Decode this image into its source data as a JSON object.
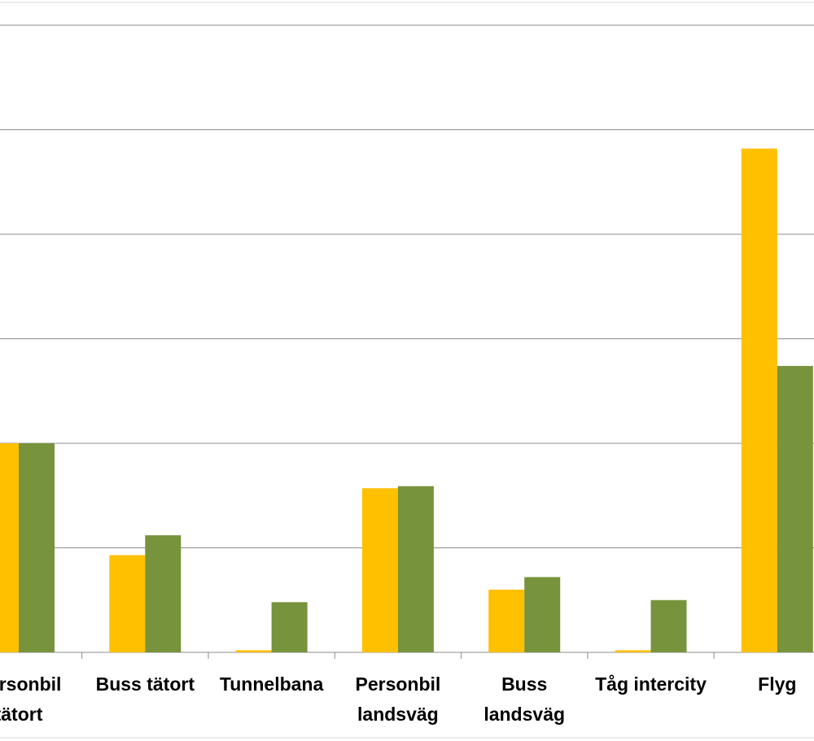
{
  "chart_data": {
    "type": "bar",
    "categories": [
      "Personbil tätort",
      "Buss tätort",
      "Tunnelbana",
      "Personbil landsväg",
      "Buss landsväg",
      "Tåg intercity",
      "Flyg"
    ],
    "series": [
      {
        "color": "#ffc000",
        "values": [
          2.0,
          0.93,
          0.02,
          1.57,
          0.6,
          0.02,
          4.82
        ]
      },
      {
        "color": "#77933c",
        "values": [
          2.0,
          1.12,
          0.48,
          1.59,
          0.72,
          0.5,
          2.74
        ]
      }
    ],
    "ylim": [
      0,
      6
    ],
    "yticks": [
      0,
      1,
      2,
      3,
      4,
      5,
      6
    ],
    "grid": true
  }
}
